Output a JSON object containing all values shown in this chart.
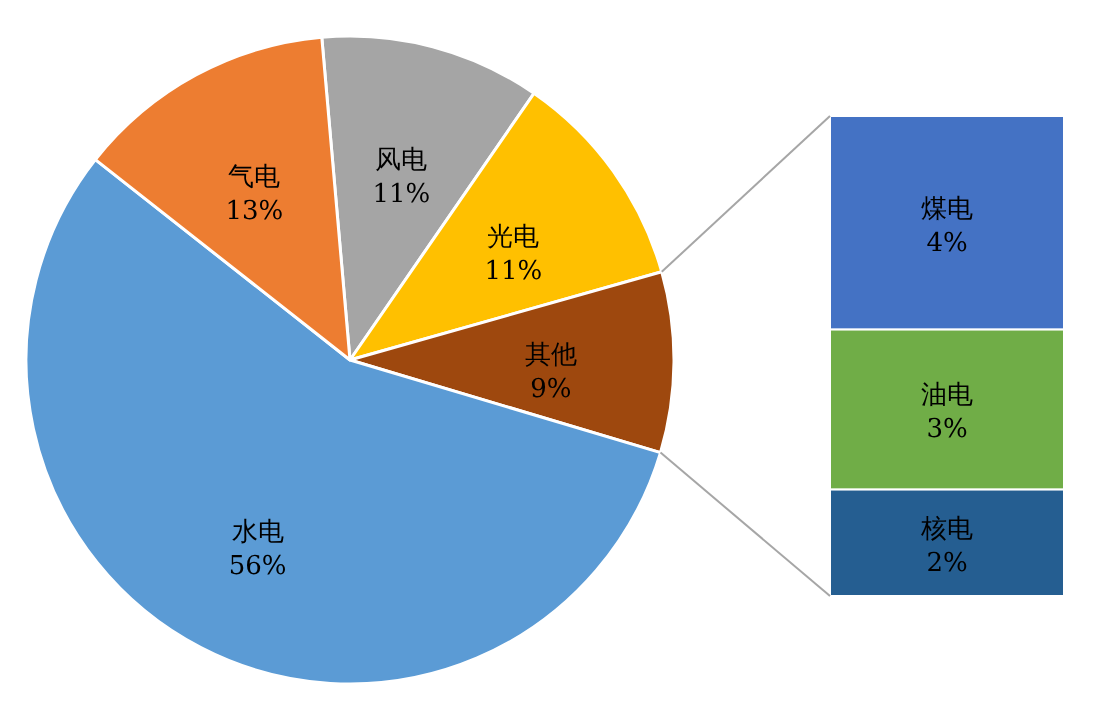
{
  "chart_data": [
    {
      "type": "pie",
      "categories": [
        "风电",
        "光电",
        "其他",
        "水电",
        "气电"
      ],
      "values": [
        11,
        11,
        9,
        56,
        13
      ],
      "colors": [
        "#a5a5a5",
        "#ffc000",
        "#9e480e",
        "#5b9bd5",
        "#ed7d31"
      ],
      "value_labels": [
        "11%",
        "11%",
        "9%",
        "56%",
        "13%"
      ]
    },
    {
      "type": "bar",
      "stacked": true,
      "categories": [
        null
      ],
      "series": [
        {
          "name": "核电",
          "color": "#255e91",
          "values": [
            2
          ],
          "value_labels": [
            "2%"
          ]
        },
        {
          "name": "油电",
          "color": "#70ad47",
          "values": [
            3
          ],
          "value_labels": [
            "3%"
          ]
        },
        {
          "name": "煤电",
          "color": "#4472c4",
          "values": [
            4
          ],
          "value_labels": [
            "4%"
          ]
        }
      ]
    }
  ]
}
